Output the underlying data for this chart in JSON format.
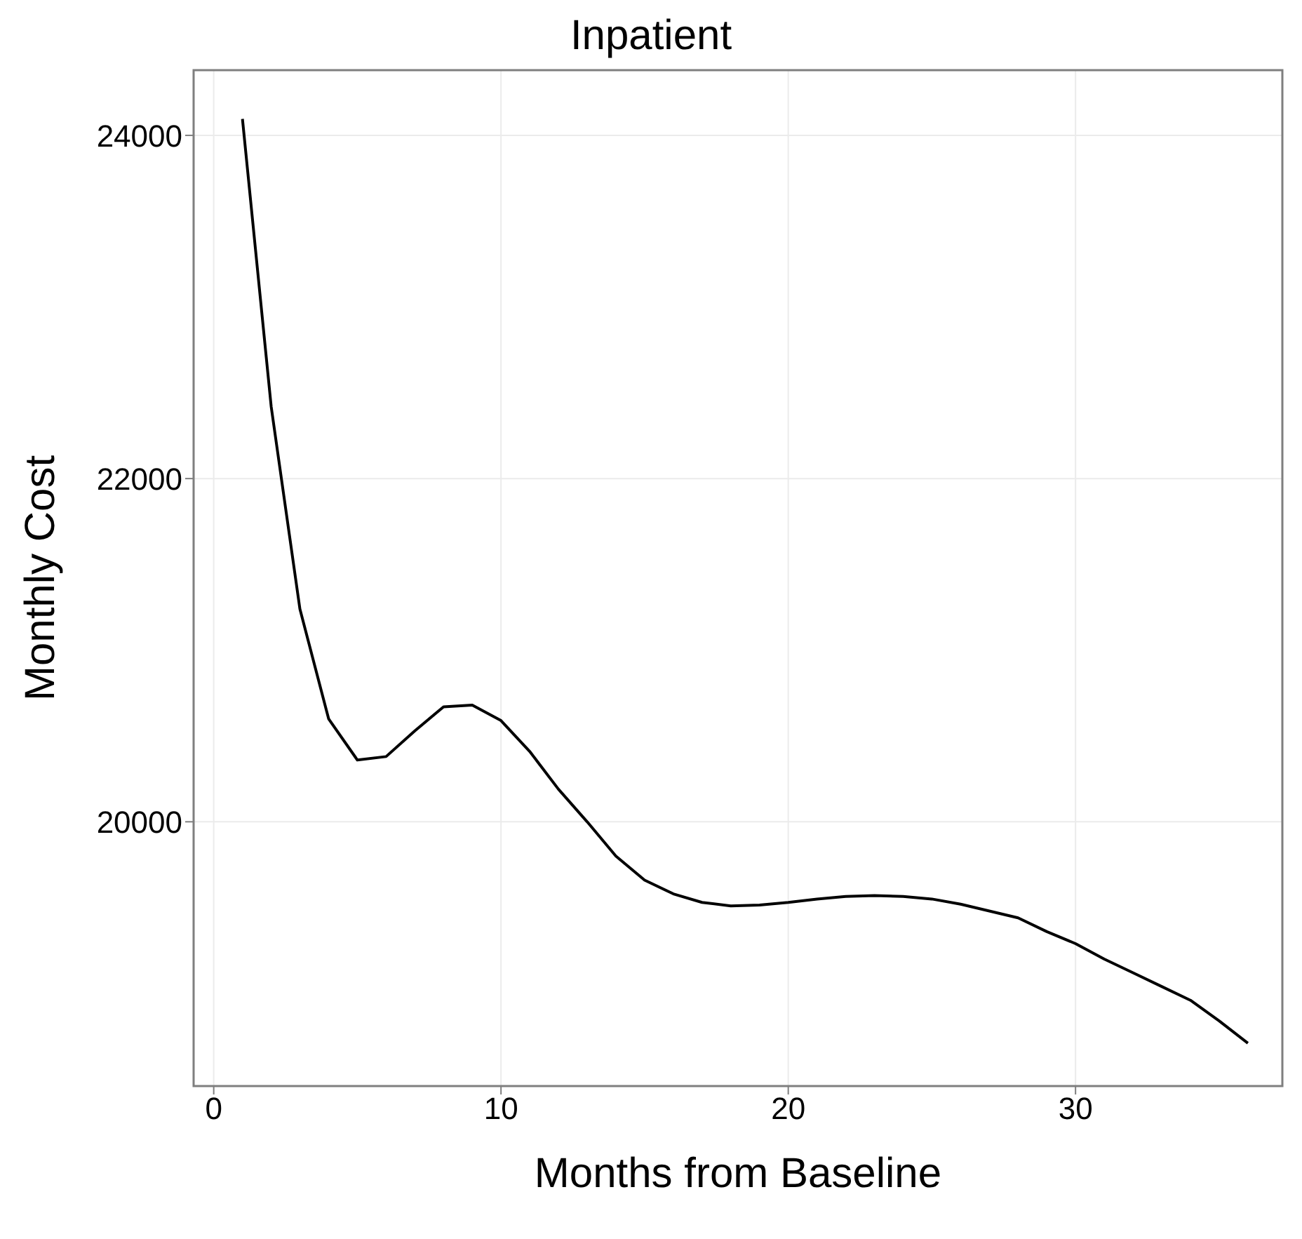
{
  "chart_data": {
    "type": "line",
    "title": "Inpatient",
    "xlabel": "Months from Baseline",
    "ylabel": "Monthly Cost",
    "x": [
      1,
      2,
      3,
      4,
      5,
      6,
      7,
      8,
      9,
      10,
      11,
      12,
      13,
      14,
      15,
      16,
      17,
      18,
      19,
      20,
      21,
      22,
      23,
      24,
      25,
      26,
      27,
      28,
      29,
      30,
      31,
      32,
      33,
      34,
      35,
      36
    ],
    "series": [
      {
        "color": "#000000",
        "values": [
          24096,
          22420,
          21240,
          20600,
          20360,
          20380,
          20530,
          20670,
          20680,
          20590,
          20410,
          20190,
          20000,
          19800,
          19660,
          19580,
          19530,
          19510,
          19515,
          19530,
          19550,
          19565,
          19570,
          19565,
          19550,
          19520,
          19480,
          19440,
          19360,
          19290,
          19200,
          19120,
          19040,
          18960,
          18840,
          18710
        ]
      }
    ],
    "xlim": [
      -0.7,
      37.2
    ],
    "xticks": [
      0,
      10,
      20,
      30
    ],
    "ylim": [
      18460,
      24380
    ],
    "yticks": [
      20000,
      22000,
      24000
    ],
    "grid": true,
    "marker": "none",
    "line_style": "solid"
  }
}
